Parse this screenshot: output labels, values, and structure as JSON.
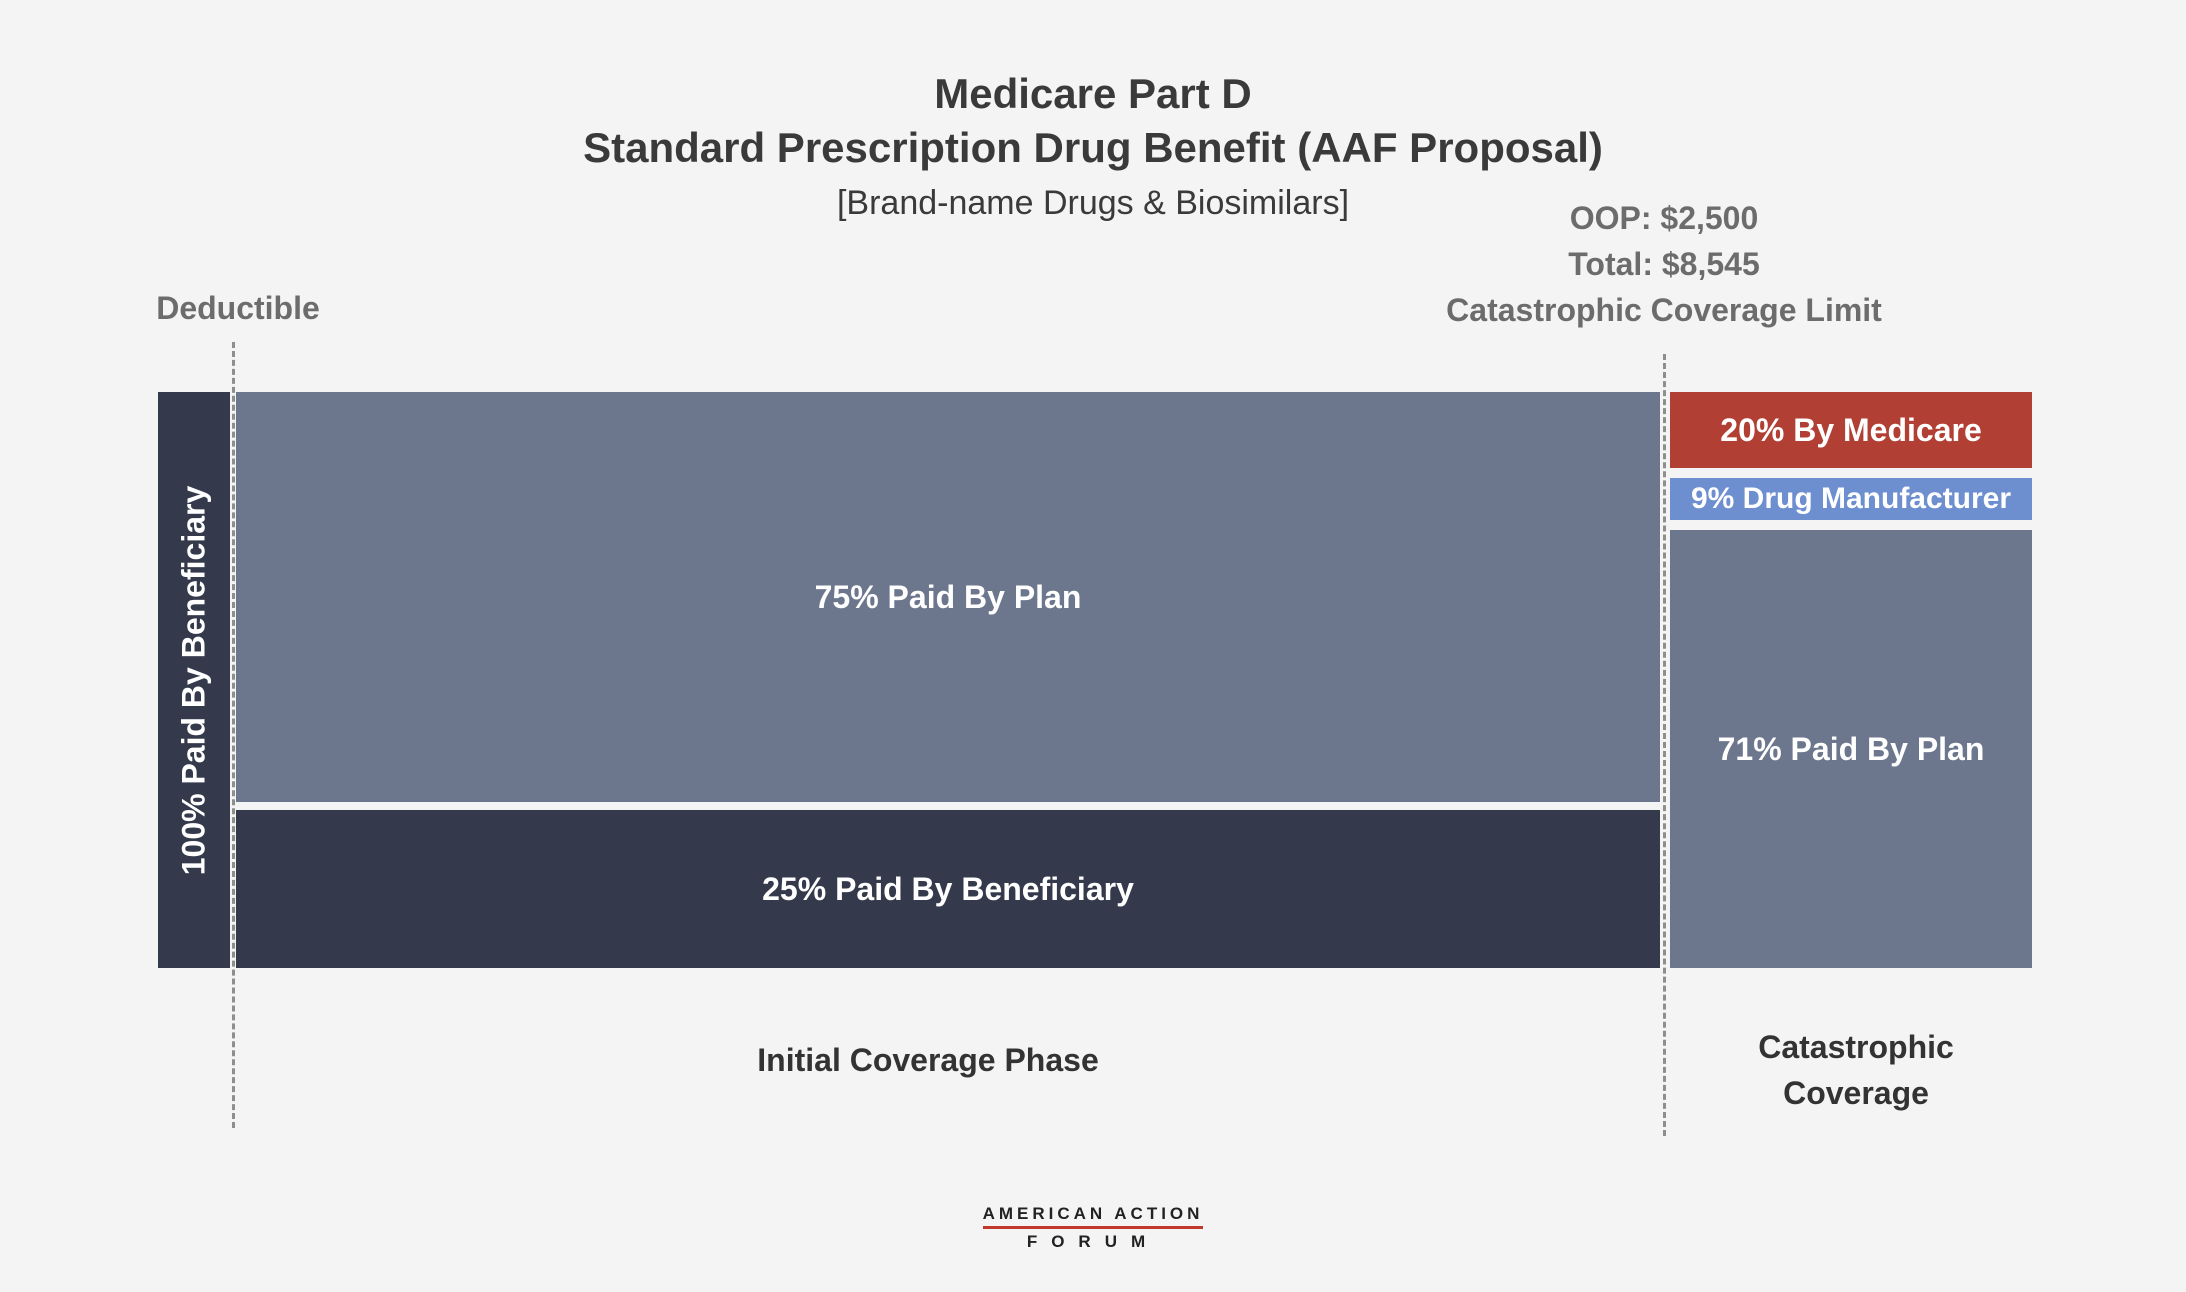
{
  "chart_data": {
    "type": "bar",
    "title": "Medicare Part D",
    "subtitle_main": "Standard Prescription Drug Benefit (AAF Proposal)",
    "subtitle": "[Brand-name Drugs & Biosimilars]",
    "markers": {
      "deductible": "Deductible",
      "oop": "OOP: $2,500",
      "total": "Total: $8,545",
      "limit": "Catastrophic Coverage Limit"
    },
    "phases": [
      {
        "name": "Deductible",
        "segments": [
          {
            "label": "100% Paid By Beneficiary",
            "payer": "Beneficiary",
            "percent": 100
          }
        ]
      },
      {
        "name": "Initial Coverage Phase",
        "segments": [
          {
            "label": "75% Paid By Plan",
            "payer": "Plan",
            "percent": 75
          },
          {
            "label": "25% Paid By Beneficiary",
            "payer": "Beneficiary",
            "percent": 25
          }
        ]
      },
      {
        "name": "Catastrophic Coverage",
        "name_line1": "Catastrophic",
        "name_line2": "Coverage",
        "segments": [
          {
            "label": "20% By Medicare",
            "payer": "Medicare",
            "percent": 20
          },
          {
            "label": "9% Drug Manufacturer",
            "payer": "Drug Manufacturer",
            "percent": 9
          },
          {
            "label": "71% Paid By Plan",
            "payer": "Plan",
            "percent": 71
          }
        ]
      }
    ],
    "colors": {
      "beneficiary": "#343a4c",
      "plan": "#6c778e",
      "medicare": "#b13f33",
      "manufacturer": "#6e8fcf"
    }
  },
  "logo": {
    "line1": "AMERICAN ACTION",
    "line2": "FORUM"
  }
}
